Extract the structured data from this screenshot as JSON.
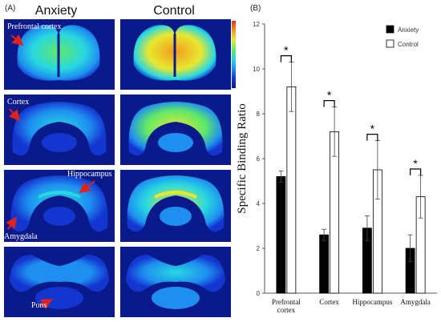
{
  "figure": {
    "panel_a_label": "(A)",
    "panel_b_label": "(B)",
    "column_headers": [
      "Anxiety",
      "Control"
    ],
    "colormap": [
      "#0b1a8a",
      "#1436d0",
      "#1e8ff0",
      "#27d8e0",
      "#5fe868",
      "#e8e830",
      "#f29a1e",
      "#e2301a"
    ],
    "region_annotations": [
      {
        "text": "Prefrontal cortex",
        "row": 0
      },
      {
        "text": "Cortex",
        "row": 1
      },
      {
        "text": "Hippocampus",
        "row": 2
      },
      {
        "text": "Amygdala",
        "row": 2
      },
      {
        "text": "Pons",
        "row": 3
      }
    ],
    "annotation_arrow_color": "#e0221c",
    "scan_rows": [
      {
        "section": "prefrontal",
        "anxiety_level": 0.62,
        "control_level": 0.92
      },
      {
        "section": "coronal",
        "anxiety_level": 0.45,
        "control_level": 0.7
      },
      {
        "section": "coronal",
        "anxiety_level": 0.42,
        "control_level": 0.66
      },
      {
        "section": "pons",
        "anxiety_level": 0.3,
        "control_level": 0.45
      }
    ]
  },
  "chart_data": {
    "type": "bar",
    "categories": [
      "Prefrontal cortex",
      "Cortex",
      "Hippocampus",
      "Amygdala"
    ],
    "category_lines": [
      [
        "Prefrontal",
        "cortex"
      ],
      [
        "Cortex"
      ],
      [
        "Hippocampus"
      ],
      [
        "Amygdala"
      ]
    ],
    "series": [
      {
        "name": "Anxiety",
        "values": [
          5.2,
          2.6,
          2.9,
          2.0
        ],
        "errors": [
          0.25,
          0.25,
          0.55,
          0.6
        ],
        "fill": "#000000"
      },
      {
        "name": "Control",
        "values": [
          9.2,
          7.2,
          5.5,
          4.3
        ],
        "errors": [
          1.1,
          1.1,
          1.3,
          0.95
        ],
        "fill": "#ffffff"
      }
    ],
    "ylabel": "Specific Binding Ratio",
    "ylim": [
      0,
      12
    ],
    "yticks": [
      0,
      2,
      4,
      6,
      8,
      10,
      12
    ],
    "significance": [
      "*",
      "*",
      "*",
      "*"
    ],
    "legend_position": "top-right",
    "grid": false
  }
}
